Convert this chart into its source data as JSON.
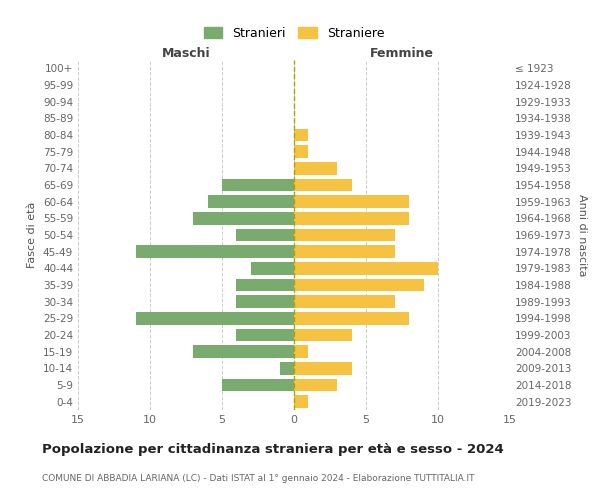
{
  "age_groups": [
    "100+",
    "95-99",
    "90-94",
    "85-89",
    "80-84",
    "75-79",
    "70-74",
    "65-69",
    "60-64",
    "55-59",
    "50-54",
    "45-49",
    "40-44",
    "35-39",
    "30-34",
    "25-29",
    "20-24",
    "15-19",
    "10-14",
    "5-9",
    "0-4"
  ],
  "birth_years": [
    "≤ 1923",
    "1924-1928",
    "1929-1933",
    "1934-1938",
    "1939-1943",
    "1944-1948",
    "1949-1953",
    "1954-1958",
    "1959-1963",
    "1964-1968",
    "1969-1973",
    "1974-1978",
    "1979-1983",
    "1984-1988",
    "1989-1993",
    "1994-1998",
    "1999-2003",
    "2004-2008",
    "2009-2013",
    "2014-2018",
    "2019-2023"
  ],
  "males": [
    0,
    0,
    0,
    0,
    0,
    0,
    0,
    5,
    6,
    7,
    4,
    11,
    3,
    4,
    4,
    11,
    4,
    7,
    1,
    5,
    0
  ],
  "females": [
    0,
    0,
    0,
    0,
    1,
    1,
    3,
    4,
    8,
    8,
    7,
    7,
    10,
    9,
    7,
    8,
    4,
    1,
    4,
    3,
    1
  ],
  "male_color": "#7aab6e",
  "female_color": "#f5c242",
  "title": "Popolazione per cittadinanza straniera per età e sesso - 2024",
  "subtitle": "COMUNE DI ABBADIA LARIANA (LC) - Dati ISTAT al 1° gennaio 2024 - Elaborazione TUTTITALIA.IT",
  "xlabel_left": "Maschi",
  "xlabel_right": "Femmine",
  "ylabel_left": "Fasce di età",
  "ylabel_right": "Anni di nascita",
  "legend_male": "Stranieri",
  "legend_female": "Straniere",
  "xlim": 15,
  "background_color": "#ffffff",
  "grid_color": "#cccccc"
}
